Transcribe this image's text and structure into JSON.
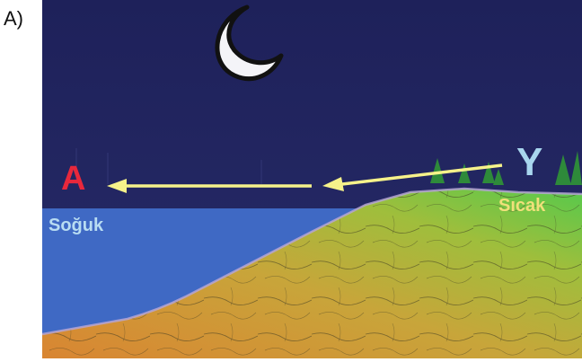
{
  "panel": {
    "label": "A)"
  },
  "labels": {
    "high_pressure": "A",
    "low_pressure": "Y",
    "cold": "Soğuk",
    "warm": "Sıcak"
  },
  "colors": {
    "sky": "#22265e",
    "sea": "#3f69c4",
    "land_warm": "#d78a3a",
    "land_mid": "#b6b83e",
    "land_cool": "#5ec84a",
    "arrow": "#f6f28a",
    "moon": "#ffffff",
    "label_high": "#e8283c",
    "label_low": "#a8d6ee"
  },
  "icons": [
    "moon-icon",
    "tree-icon",
    "arrow-icon"
  ]
}
